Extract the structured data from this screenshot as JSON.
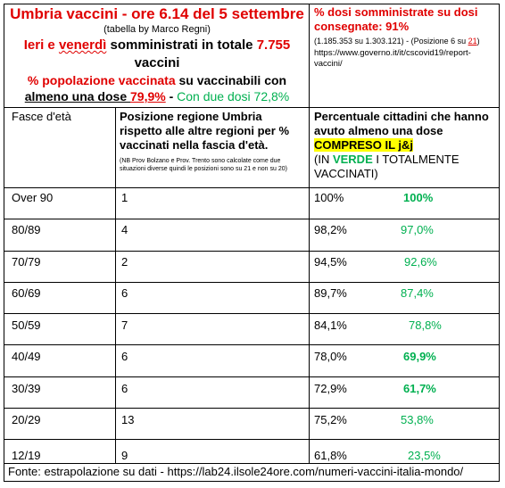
{
  "header": {
    "title": "Umbria vaccini - ore 6.14 del 5 settembre",
    "subtitle": "(tabella by Marco Regni)",
    "ieri_prefix": "Ieri e ",
    "ieri_day": "venerdì",
    "ieri_middle": " somministrati in totale ",
    "ieri_total": "7.755",
    "ieri_suffix": "vaccini",
    "pop_prefix": "% popolazione ",
    "pop_word": "vaccinata",
    "pop_suffix": " su vaccinabili con",
    "almeno_label": "almeno una dose ",
    "almeno_value": "79,9%",
    "almeno_sep": " - ",
    "due_dosi": "Con due dosi 72,8%"
  },
  "right_header": {
    "title": "% dosi somministrate su dosi consegnate: 91%",
    "detail_values": "(1.185.353 su 1.303.121) - (Posizione 6 su ",
    "detail_total": "21",
    "detail_close": ")",
    "url": "https://www.governo.it/it/cscovid19/report-vaccini/"
  },
  "table": {
    "col1_header": "Fasce d'età",
    "col2_header": "Posizione regione  Umbria rispetto alle altre regioni per % vaccinati nella fascia d'età.",
    "col2_note": "(NB Prov Bolzano e Prov. Trento sono calcolate come due situazioni diverse quindi le posizioni sono su 21 e non su 20)",
    "col3_header_a": "Percentuale cittadini che hanno avuto almeno una dose ",
    "col3_highlight": "COMPRESO IL j&j",
    "col3_header_b": "(IN ",
    "col3_verde": "VERDE",
    "col3_header_c": " I TOTALMENTE VACCINATI)",
    "rows": [
      {
        "age": "Over 90",
        "position": "1",
        "pct": "100%",
        "full": "100%",
        "full_bold": true
      },
      {
        "age": "80/89",
        "position": "4",
        "pct": "98,2%",
        "full": "97,0%",
        "full_bold": false
      },
      {
        "age": "70/79",
        "position": "2",
        "pct": "94,5%",
        "full": "92,6%",
        "full_bold": false
      },
      {
        "age": "60/69",
        "position": "6",
        "pct": "89,7%",
        "full": "87,4%",
        "full_bold": false
      },
      {
        "age": "50/59",
        "position": "7",
        "pct": "84,1%",
        "full": "78,8%",
        "full_bold": false
      },
      {
        "age": "40/49",
        "position": "6",
        "pct": "78,0%",
        "full": "69,9%",
        "full_bold": true
      },
      {
        "age": "30/39",
        "position": "6",
        "pct": "72,9%",
        "full": "61,7%",
        "full_bold": true
      },
      {
        "age": "20/29",
        "position": "13",
        "pct": "75,2%",
        "full": "53,8%",
        "full_bold": false
      },
      {
        "age": "12/19",
        "position": "9",
        "pct": "61,8%",
        "full": "23,5%",
        "full_bold": false
      }
    ]
  },
  "footer": "Fonte: estrapolazione su dati  - https://lab24.ilsole24ore.com/numeri-vaccini-italia-mondo/"
}
